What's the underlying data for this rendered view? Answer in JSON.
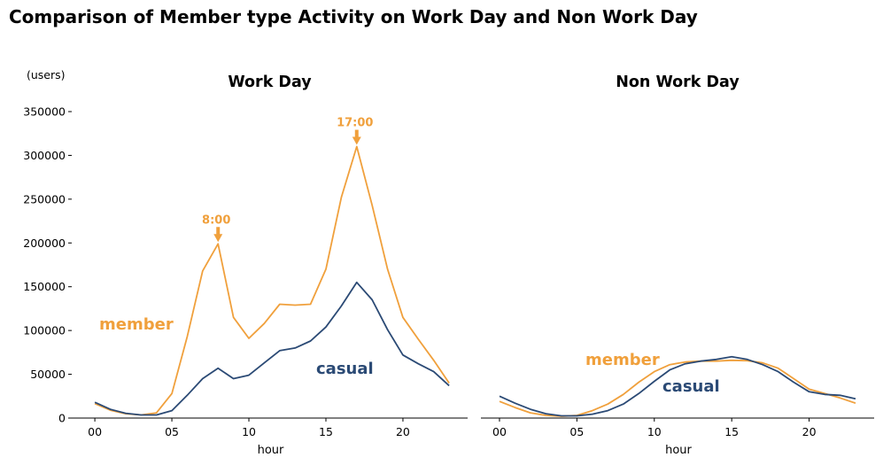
{
  "title": "Comparison of Member type Activity on Work Day and Non Work Day",
  "y_unit_label": "(users)",
  "colors": {
    "member": "#f0a03c",
    "casual": "#2b4a75",
    "axis": "#000000"
  },
  "chart_data": [
    {
      "type": "line",
      "title": "Work Day",
      "xlabel": "hour",
      "ylabel": "(users)",
      "x": [
        0,
        1,
        2,
        3,
        4,
        5,
        6,
        7,
        8,
        9,
        10,
        11,
        12,
        13,
        14,
        15,
        16,
        17,
        18,
        19,
        20,
        21,
        22,
        23
      ],
      "xlim": [
        -1.5,
        24.2
      ],
      "ylim": [
        0,
        360000
      ],
      "xticks": [
        0,
        5,
        10,
        15,
        20
      ],
      "xtick_labels": [
        "00",
        "05",
        "10",
        "15",
        "20"
      ],
      "yticks": [
        0,
        50000,
        100000,
        150000,
        200000,
        250000,
        300000,
        350000
      ],
      "ytick_labels": [
        "0",
        "50000",
        "100000",
        "150000",
        "200000",
        "250000",
        "300000",
        "350000"
      ],
      "series": [
        {
          "name": "member",
          "label_text": "member",
          "values": [
            16500,
            9000,
            5000,
            3500,
            6000,
            28000,
            93000,
            168000,
            199000,
            115000,
            91000,
            108000,
            130000,
            129000,
            130000,
            170000,
            252000,
            310000,
            243000,
            170000,
            115000,
            90000,
            66000,
            40000
          ]
        },
        {
          "name": "casual",
          "label_text": "casual",
          "values": [
            18000,
            10000,
            5500,
            3500,
            3500,
            8500,
            26000,
            45000,
            57000,
            45000,
            49000,
            63000,
            77000,
            80000,
            88000,
            104000,
            128000,
            155000,
            135000,
            101000,
            72000,
            62000,
            53000,
            37000
          ]
        }
      ],
      "annotations": [
        {
          "text": "8:00",
          "x": 8,
          "y": 199000
        },
        {
          "text": "17:00",
          "x": 17,
          "y": 310000
        }
      ]
    },
    {
      "type": "line",
      "title": "Non Work Day",
      "xlabel": "hour",
      "x": [
        0,
        1,
        2,
        3,
        4,
        5,
        6,
        7,
        8,
        9,
        10,
        11,
        12,
        13,
        14,
        15,
        16,
        17,
        18,
        19,
        20,
        21,
        22,
        23
      ],
      "xlim": [
        -1.2,
        24.2
      ],
      "ylim": [
        0,
        360000
      ],
      "xticks": [
        0,
        5,
        10,
        15,
        20
      ],
      "xtick_labels": [
        "00",
        "05",
        "10",
        "15",
        "20"
      ],
      "series": [
        {
          "name": "member",
          "label_text": "member",
          "values": [
            19000,
            12000,
            6000,
            3000,
            2000,
            3000,
            8500,
            16000,
            27000,
            41000,
            53000,
            61000,
            64000,
            65000,
            65000,
            66000,
            65500,
            63000,
            57000,
            45000,
            33000,
            28000,
            23000,
            17000
          ]
        },
        {
          "name": "casual",
          "label_text": "casual",
          "values": [
            25000,
            17000,
            10000,
            5000,
            2500,
            2500,
            4500,
            8500,
            16000,
            28000,
            42000,
            55000,
            62000,
            65000,
            67000,
            70000,
            67000,
            61000,
            53000,
            41000,
            30000,
            27000,
            26000,
            22000
          ]
        }
      ],
      "annotations": []
    }
  ]
}
